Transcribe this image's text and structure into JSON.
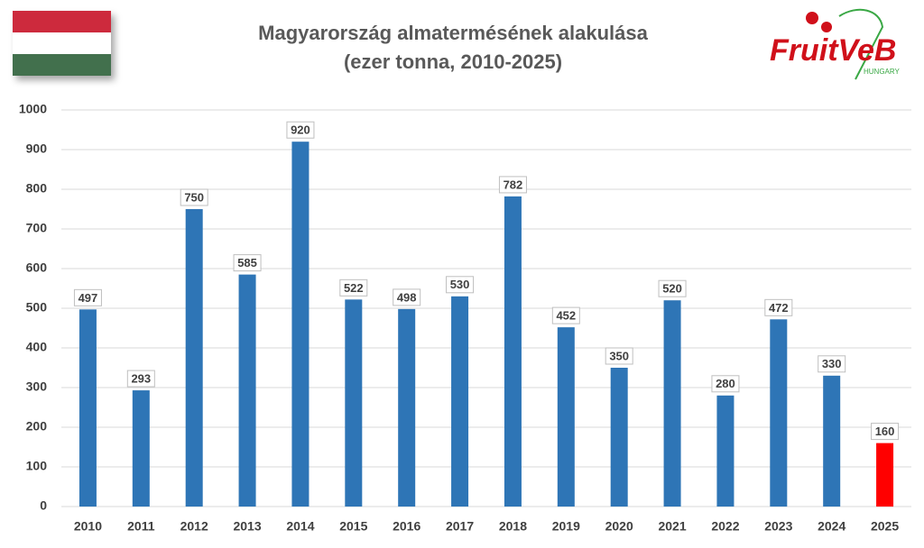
{
  "chart_data": {
    "type": "bar",
    "title": "Magyarország almatermésének alakulása",
    "subtitle": "(ezer tonna, 2010-2025)",
    "logo": {
      "text": "FruitVeB",
      "subtext": "HUNGARY"
    },
    "categories": [
      "2010",
      "2011",
      "2012",
      "2013",
      "2014",
      "2015",
      "2016",
      "2017",
      "2018",
      "2019",
      "2020",
      "2021",
      "2022",
      "2023",
      "2024",
      "2025"
    ],
    "values": [
      497,
      293,
      750,
      585,
      920,
      522,
      498,
      530,
      782,
      452,
      350,
      520,
      280,
      472,
      330,
      160
    ],
    "colors": [
      "#2e75b6",
      "#2e75b6",
      "#2e75b6",
      "#2e75b6",
      "#2e75b6",
      "#2e75b6",
      "#2e75b6",
      "#2e75b6",
      "#2e75b6",
      "#2e75b6",
      "#2e75b6",
      "#2e75b6",
      "#2e75b6",
      "#2e75b6",
      "#2e75b6",
      "#ff0000"
    ],
    "ylim": [
      0,
      1000
    ],
    "yticks": [
      0,
      100,
      200,
      300,
      400,
      500,
      600,
      700,
      800,
      900,
      1000
    ],
    "grid": true
  }
}
